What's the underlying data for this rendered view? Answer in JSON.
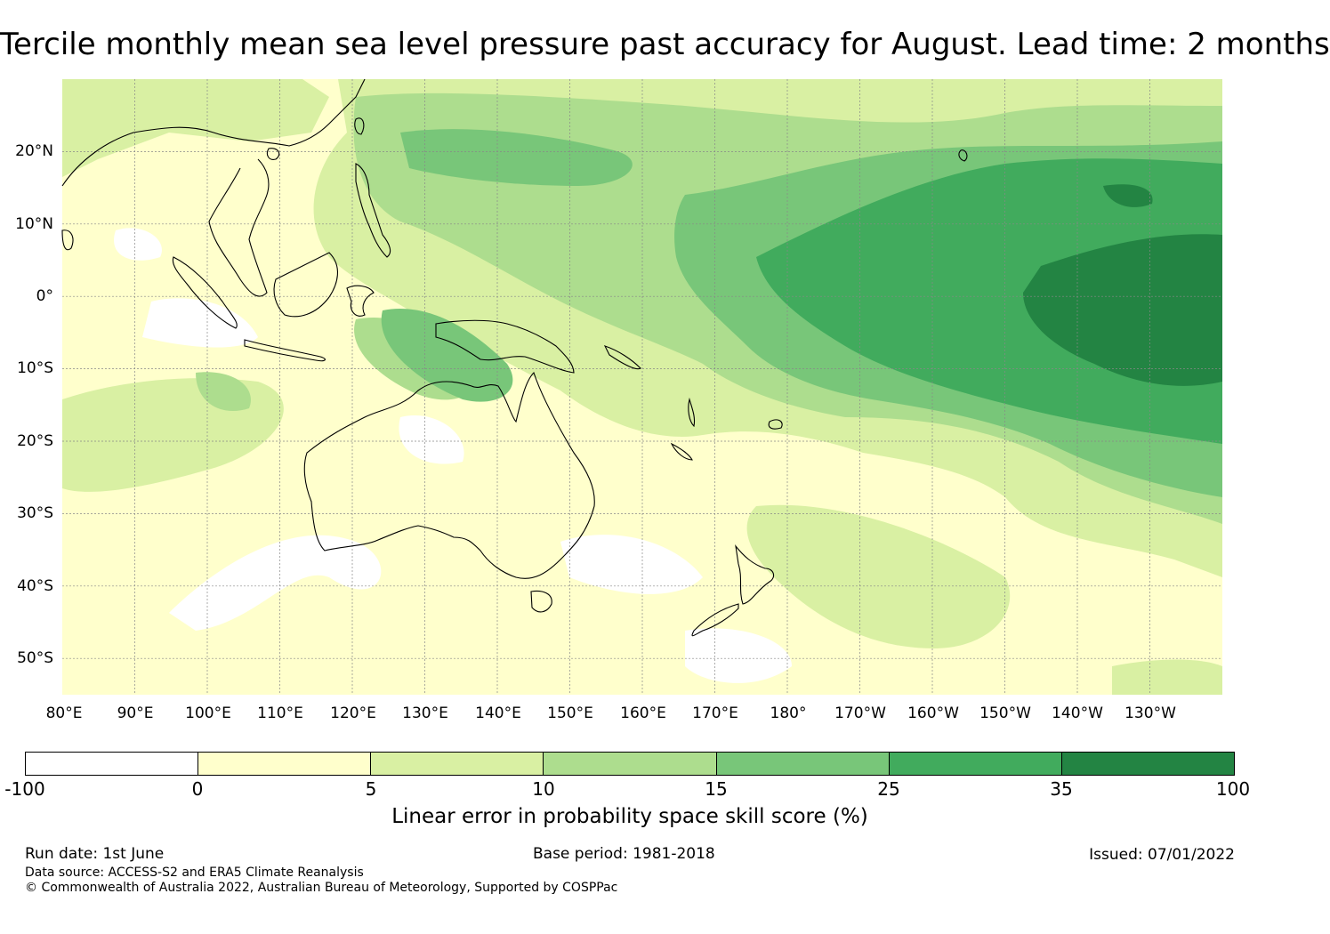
{
  "title": "Tercile monthly mean sea level pressure past accuracy for August. Lead time: 2 months",
  "map": {
    "lat_labels": [
      "20°N",
      "10°N",
      "0°",
      "10°S",
      "20°S",
      "30°S",
      "40°S",
      "50°S"
    ],
    "lon_labels": [
      "80°E",
      "90°E",
      "100°E",
      "110°E",
      "120°E",
      "130°E",
      "140°E",
      "150°E",
      "160°E",
      "170°E",
      "180°",
      "170°W",
      "160°W",
      "150°W",
      "140°W",
      "130°W"
    ],
    "extent": {
      "lon_min": 80,
      "lon_max": 240,
      "lat_min": -55,
      "lat_max": 30
    }
  },
  "colorbar": {
    "ticks": [
      "-100",
      "0",
      "5",
      "10",
      "15",
      "25",
      "35",
      "100"
    ],
    "colors": [
      "#ffffff",
      "#ffffcc",
      "#d9f0a3",
      "#addd8e",
      "#78c679",
      "#41ab5d",
      "#238443"
    ],
    "label": "Linear error in probability space skill score (%)"
  },
  "footer": {
    "run_date": "Run date: 1st June",
    "base_period": "Base period: 1981-2018",
    "issued": "Issued: 07/01/2022",
    "data_source": "Data source: ACCESS-S2 and ERA5 Climate Reanalysis",
    "copyright": "© Commonwealth of Australia 2022, Australian Bureau of Meteorology, Supported by COSPPac"
  }
}
